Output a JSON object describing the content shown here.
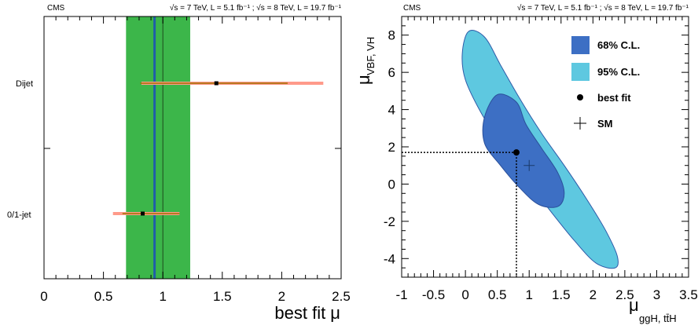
{
  "header": {
    "left_experiment": "CMS",
    "left_lumi": "√s = 7 TeV, L = 5.1 fb⁻¹ ; √s = 8 TeV, L = 19.7 fb⁻¹",
    "right_experiment": "CMS",
    "right_lumi": "√s = 7 TeV, L = 5.1 fb⁻¹ ; √s = 8 TeV, L = 19.7 fb⁻¹"
  },
  "colors": {
    "band_green": "#3cb64a",
    "combined_line": "#1f5fa8",
    "stat_bar": "#ff9a8a",
    "syst_bar": "#a07000",
    "ci68": "#3d6fc4",
    "ci95": "#5ec8e0"
  },
  "chart_data": [
    {
      "type": "scatter",
      "title": "",
      "xlabel": "best fit μ",
      "ylabel": "",
      "xlim": [
        0,
        2.5
      ],
      "xticks": [
        "0",
        "0.5",
        "1",
        "1.5",
        "2",
        "2.5"
      ],
      "combined": {
        "value": 0.93,
        "band": [
          0.69,
          1.23
        ],
        "sm": 1.0
      },
      "categories": [
        {
          "name": "Dijet",
          "value": 1.45,
          "stat": [
            0.82,
            2.35
          ],
          "syst": [
            0.81,
            2.05
          ]
        },
        {
          "name": "0/1-jet",
          "value": 0.83,
          "stat": [
            0.58,
            1.14
          ],
          "syst": [
            0.66,
            1.14
          ]
        }
      ],
      "grid": false
    },
    {
      "type": "area",
      "title": "",
      "xlabel": "μ",
      "xlabel_sub": "ggH, tt̄H",
      "ylabel": "μ",
      "ylabel_sub": "VBF, VH",
      "xlim": [
        -1,
        3.5
      ],
      "ylim": [
        -5,
        9
      ],
      "xticks": [
        "-1",
        "-0.5",
        "0",
        "0.5",
        "1",
        "1.5",
        "2",
        "2.5",
        "3",
        "3.5"
      ],
      "yticks": [
        "-4",
        "-2",
        "0",
        "2",
        "4",
        "6",
        "8"
      ],
      "best_fit": {
        "x": 0.8,
        "y": 1.7
      },
      "sm": {
        "x": 1.0,
        "y": 1.0
      },
      "contour95": [
        [
          0.05,
          8.2
        ],
        [
          -0.05,
          7.0
        ],
        [
          0.0,
          5.6
        ],
        [
          0.25,
          3.8
        ],
        [
          0.55,
          2.2
        ],
        [
          0.9,
          0.5
        ],
        [
          1.3,
          -1.3
        ],
        [
          1.7,
          -3.0
        ],
        [
          2.05,
          -4.25
        ],
        [
          2.35,
          -4.5
        ],
        [
          2.38,
          -3.85
        ],
        [
          2.2,
          -2.5
        ],
        [
          1.9,
          -0.8
        ],
        [
          1.55,
          1.0
        ],
        [
          1.2,
          2.7
        ],
        [
          0.85,
          4.6
        ],
        [
          0.55,
          6.4
        ],
        [
          0.3,
          7.9
        ]
      ],
      "contour68": [
        [
          0.5,
          4.8
        ],
        [
          0.3,
          3.6
        ],
        [
          0.3,
          2.2
        ],
        [
          0.55,
          1.0
        ],
        [
          0.85,
          -0.2
        ],
        [
          1.15,
          -1.1
        ],
        [
          1.45,
          -1.2
        ],
        [
          1.55,
          -0.5
        ],
        [
          1.45,
          0.6
        ],
        [
          1.2,
          1.9
        ],
        [
          0.95,
          3.2
        ],
        [
          0.8,
          4.4
        ]
      ],
      "legend": {
        "position": "top-right",
        "entries": [
          "68% C.L.",
          "95% C.L.",
          "best fit",
          "SM"
        ]
      },
      "grid": false
    }
  ]
}
